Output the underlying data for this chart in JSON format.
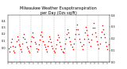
{
  "title": "Milwaukee Weather Evapotranspiration\nper Day (Ozs sq/ft)",
  "title_fontsize": 3.5,
  "background_color": "#ffffff",
  "plot_bg_color": "#ffffff",
  "dot_color": "#ff0000",
  "dot_size": 1.2,
  "grid_color": "#888888",
  "x_values": [
    1,
    2,
    3,
    4,
    5,
    6,
    7,
    8,
    9,
    10,
    11,
    12,
    13,
    14,
    15,
    16,
    17,
    18,
    19,
    20,
    21,
    22,
    23,
    24,
    25,
    26,
    27,
    28,
    29,
    30,
    31,
    32,
    33,
    34,
    35,
    36,
    37,
    38,
    39,
    40,
    41,
    42,
    43,
    44,
    45,
    46,
    47,
    48,
    49,
    50,
    51,
    52,
    53,
    54,
    55,
    56,
    57,
    58,
    59,
    60,
    61,
    62,
    63,
    64,
    65,
    66,
    67,
    68,
    69,
    70,
    71,
    72,
    73,
    74,
    75,
    76,
    77,
    78,
    79,
    80,
    81,
    82,
    83,
    84,
    85,
    86,
    87,
    88,
    89,
    90,
    91,
    92,
    93,
    94,
    95,
    96,
    97,
    98,
    99,
    100,
    101,
    102,
    103,
    104,
    105,
    106,
    107,
    108,
    109,
    110,
    111,
    112,
    113,
    114,
    115,
    116
  ],
  "y_values": [
    0.12,
    0.09,
    0.13,
    0.17,
    0.2,
    0.14,
    0.1,
    0.08,
    0.13,
    0.18,
    0.22,
    0.19,
    0.15,
    0.14,
    0.11,
    0.09,
    0.16,
    0.21,
    0.24,
    0.2,
    0.17,
    0.13,
    0.12,
    0.1,
    0.08,
    0.14,
    0.18,
    0.22,
    0.25,
    0.21,
    0.17,
    0.16,
    0.12,
    0.09,
    0.11,
    0.15,
    0.19,
    0.23,
    0.26,
    0.22,
    0.18,
    0.15,
    0.13,
    0.11,
    0.09,
    0.14,
    0.18,
    0.22,
    0.2,
    0.17,
    0.14,
    0.12,
    0.1,
    0.08,
    0.12,
    0.15,
    0.19,
    0.23,
    0.21,
    0.17,
    0.14,
    0.11,
    0.09,
    0.08,
    0.12,
    0.16,
    0.2,
    0.24,
    0.28,
    0.25,
    0.21,
    0.18,
    0.15,
    0.13,
    0.11,
    0.16,
    0.2,
    0.24,
    0.28,
    0.32,
    0.28,
    0.24,
    0.2,
    0.17,
    0.14,
    0.11,
    0.15,
    0.2,
    0.25,
    0.3,
    0.27,
    0.23,
    0.2,
    0.17,
    0.14,
    0.19,
    0.24,
    0.29,
    0.33,
    0.29,
    0.25,
    0.22,
    0.18,
    0.15,
    0.12,
    0.16,
    0.21,
    0.26,
    0.31,
    0.28,
    0.24,
    0.21,
    0.17,
    0.14,
    0.11,
    0.15
  ],
  "vline_positions": [
    14,
    27,
    40,
    53,
    66,
    79,
    92,
    105
  ],
  "ylim": [
    0.0,
    0.4
  ],
  "yticks": [
    0.0,
    0.1,
    0.2,
    0.3,
    0.4
  ],
  "ytick_labels": [
    "0.0",
    "0.1",
    "0.2",
    "0.3",
    "0.4"
  ],
  "left_label": "0.4\n0.3\n0.2\n0.1\n0.0"
}
